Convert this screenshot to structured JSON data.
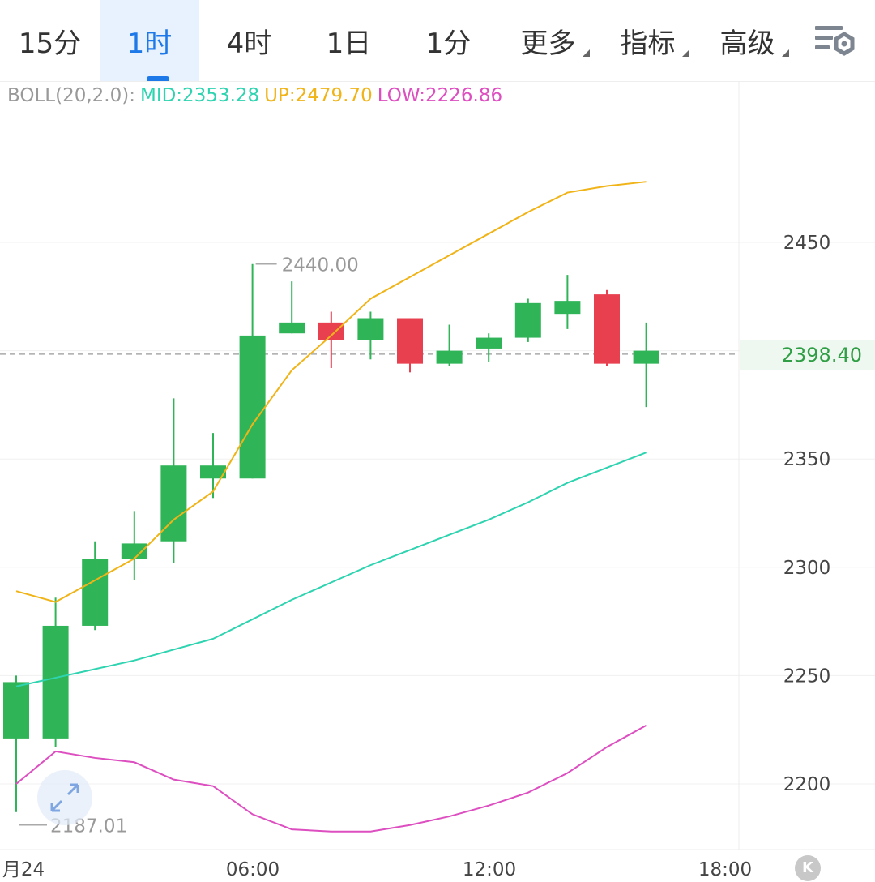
{
  "tabs": [
    {
      "label": "15分",
      "active": false,
      "dropdown": false
    },
    {
      "label": "1时",
      "active": true,
      "dropdown": false
    },
    {
      "label": "4时",
      "active": false,
      "dropdown": false
    },
    {
      "label": "1日",
      "active": false,
      "dropdown": false
    },
    {
      "label": "1分",
      "active": false,
      "dropdown": false
    },
    {
      "label": "更多",
      "active": false,
      "dropdown": true
    },
    {
      "label": "指标",
      "active": false,
      "dropdown": true
    },
    {
      "label": "高级",
      "active": false,
      "dropdown": true
    }
  ],
  "settings_icon": "chart-settings-icon",
  "legend": {
    "prefix": "BOLL(20,2.0):",
    "mid": "MID:2353.28",
    "up": "UP:2479.70",
    "low": "LOW:2226.86"
  },
  "colors": {
    "up_candle": "#2fb457",
    "down_candle": "#e8404f",
    "mid_line": "#2ed3b0",
    "up_line": "#f0b418",
    "low_line": "#dd4ec0",
    "legend_prefix": "#999999",
    "accent": "#1e79e8"
  },
  "current_price": "2398.40",
  "annotations": {
    "high": "2440.00",
    "low": "2187.01"
  },
  "k_button": "K",
  "fullscreen_icon": "expand-arrows-icon",
  "chart_data": {
    "type": "candlestick",
    "indicator": "BOLL(20,2.0)",
    "y_ticks": [
      "2450",
      "2400",
      "2350",
      "2300",
      "2250",
      "2200"
    ],
    "ylim": [
      2175,
      2490
    ],
    "x_labels": [
      "月24",
      "06:00",
      "12:00",
      "18:00"
    ],
    "candles": [
      {
        "open": 2221,
        "close": 2247,
        "high": 2250,
        "low": 2187
      },
      {
        "open": 2221,
        "close": 2273,
        "high": 2286,
        "low": 2217
      },
      {
        "open": 2273,
        "close": 2304,
        "high": 2312,
        "low": 2271
      },
      {
        "open": 2304,
        "close": 2311,
        "high": 2326,
        "low": 2294
      },
      {
        "open": 2312,
        "close": 2347,
        "high": 2378,
        "low": 2302
      },
      {
        "open": 2341,
        "close": 2347,
        "high": 2362,
        "low": 2332
      },
      {
        "open": 2341,
        "close": 2407,
        "high": 2440,
        "low": 2341
      },
      {
        "open": 2408,
        "close": 2413,
        "high": 2432,
        "low": 2408
      },
      {
        "open": 2413,
        "close": 2405,
        "high": 2418,
        "low": 2392
      },
      {
        "open": 2405,
        "close": 2415,
        "high": 2418,
        "low": 2396
      },
      {
        "open": 2415,
        "close": 2394,
        "high": 2415,
        "low": 2390
      },
      {
        "open": 2394,
        "close": 2400,
        "high": 2412,
        "low": 2393
      },
      {
        "open": 2401,
        "close": 2406,
        "high": 2408,
        "low": 2395
      },
      {
        "open": 2406,
        "close": 2422,
        "high": 2424,
        "low": 2404
      },
      {
        "open": 2417,
        "close": 2423,
        "high": 2435,
        "low": 2410
      },
      {
        "open": 2426,
        "close": 2394,
        "high": 2428,
        "low": 2393
      },
      {
        "open": 2394,
        "close": 2400,
        "high": 2413,
        "low": 2374
      }
    ],
    "series": [
      {
        "name": "UP",
        "values": [
          2289,
          2284,
          2294,
          2304,
          2322,
          2335,
          2366,
          2391,
          2407,
          2424,
          2434,
          2444,
          2454,
          2464,
          2473,
          2476,
          2478
        ]
      },
      {
        "name": "MID",
        "values": [
          2245,
          2249,
          2253,
          2257,
          2262,
          2267,
          2276,
          2285,
          2293,
          2301,
          2308,
          2315,
          2322,
          2330,
          2339,
          2346,
          2353
        ]
      },
      {
        "name": "LOW",
        "values": [
          2200,
          2215,
          2212,
          2210,
          2202,
          2199,
          2186,
          2179,
          2178,
          2178,
          2181,
          2185,
          2190,
          2196,
          2205,
          2217,
          2227
        ]
      }
    ]
  }
}
